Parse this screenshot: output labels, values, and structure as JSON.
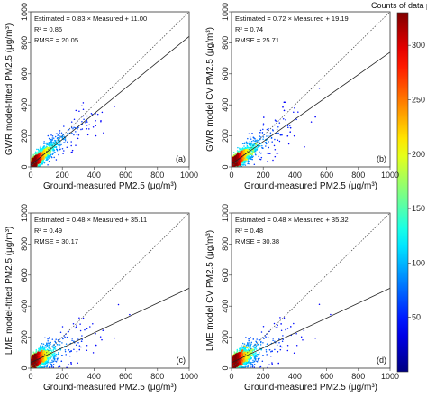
{
  "colorbar": {
    "title": "Counts of data points",
    "ticks": [
      50,
      100,
      150,
      200,
      250,
      300
    ],
    "min": 0,
    "max": 330
  },
  "chart_data": [
    {
      "type": "scatter",
      "panel_label": "(a)",
      "ylabel": "GWR model-fitted PM2.5 (μg/m³)",
      "xlabel": "Ground-measured PM2.5 (μg/m³)",
      "xlim": [
        0,
        1000
      ],
      "ylim": [
        0,
        1000
      ],
      "xticks": [
        0,
        200,
        400,
        600,
        800,
        1000
      ],
      "yticks": [
        0,
        200,
        400,
        600,
        800,
        1000
      ],
      "annotations": [
        "Estimated = 0.83 × Measured + 11.00",
        "R² = 0.86",
        "RMSE = 20.05"
      ],
      "fit": {
        "slope": 0.83,
        "intercept": 11.0
      },
      "one_to_one_line": true,
      "density_spread": 0.45
    },
    {
      "type": "scatter",
      "panel_label": "(b)",
      "ylabel": "GWR model CV PM2.5 (μg/m³)",
      "xlabel": "Ground-measured PM2.5 (μg/m³)",
      "xlim": [
        0,
        1000
      ],
      "ylim": [
        0,
        1000
      ],
      "xticks": [
        0,
        200,
        400,
        600,
        800,
        1000
      ],
      "yticks": [
        0,
        200,
        400,
        600,
        800,
        1000
      ],
      "annotations": [
        "Estimated = 0.72 × Measured + 19.19",
        "R² = 0.74",
        "RMSE = 25.71"
      ],
      "fit": {
        "slope": 0.72,
        "intercept": 19.19
      },
      "one_to_one_line": true,
      "density_spread": 0.6
    },
    {
      "type": "scatter",
      "panel_label": "(c)",
      "ylabel": "LME model-fitted PM2.5 (μg/m³)",
      "xlabel": "Ground-measured PM2.5 (μg/m³)",
      "xlim": [
        0,
        1000
      ],
      "ylim": [
        0,
        1000
      ],
      "xticks": [
        0,
        200,
        400,
        600,
        800,
        1000
      ],
      "yticks": [
        0,
        200,
        400,
        600,
        800,
        1000
      ],
      "annotations": [
        "Estimated = 0.48 × Measured + 35.11",
        "R² = 0.49",
        "RMSE = 30.17"
      ],
      "fit": {
        "slope": 0.48,
        "intercept": 35.11
      },
      "one_to_one_line": true,
      "density_spread": 0.75
    },
    {
      "type": "scatter",
      "panel_label": "(d)",
      "ylabel": "LME model CV PM2.5 (μg/m³)",
      "xlabel": "Ground-measured PM2.5 (μg/m³)",
      "xlim": [
        0,
        1000
      ],
      "ylim": [
        0,
        1000
      ],
      "xticks": [
        0,
        200,
        400,
        600,
        800,
        1000
      ],
      "yticks": [
        0,
        200,
        400,
        600,
        800,
        1000
      ],
      "annotations": [
        "Estimated = 0.48 × Measured + 35.32",
        "R² = 0.48",
        "RMSE = 30.38"
      ],
      "fit": {
        "slope": 0.48,
        "intercept": 35.32
      },
      "one_to_one_line": true,
      "density_spread": 0.76
    }
  ]
}
